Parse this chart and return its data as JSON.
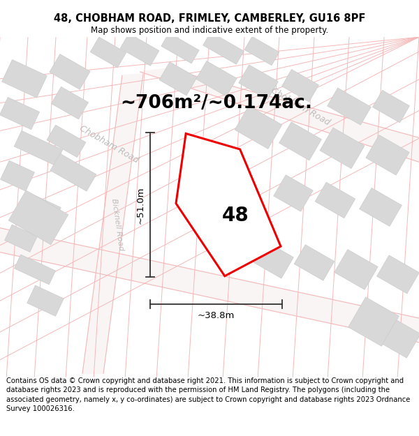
{
  "title_line1": "48, CHOBHAM ROAD, FRIMLEY, CAMBERLEY, GU16 8PF",
  "title_line2": "Map shows position and indicative extent of the property.",
  "area_text": "~706m²/~0.174ac.",
  "label_48": "48",
  "dim_height": "~51.0m",
  "dim_width": "~38.8m",
  "footer_text": "Contains OS data © Crown copyright and database right 2021. This information is subject to Crown copyright and database rights 2023 and is reproduced with the permission of HM Land Registry. The polygons (including the associated geometry, namely x, y co-ordinates) are subject to Crown copyright and database rights 2023 Ordnance Survey 100026316.",
  "bg_color": "#ffffff",
  "map_bg": "#ffffff",
  "road_color": "#f5b8b8",
  "building_color": "#d8d8d8",
  "plot_outline_color": "#ee0000",
  "dim_line_color": "#333333",
  "title_fontsize": 10.5,
  "subtitle_fontsize": 8.5,
  "area_fontsize": 19,
  "label_fontsize": 20,
  "dim_fontsize": 9.5,
  "footer_fontsize": 7.2,
  "road_label_color": "#bbbbbb",
  "road_label_fontsize": 9
}
